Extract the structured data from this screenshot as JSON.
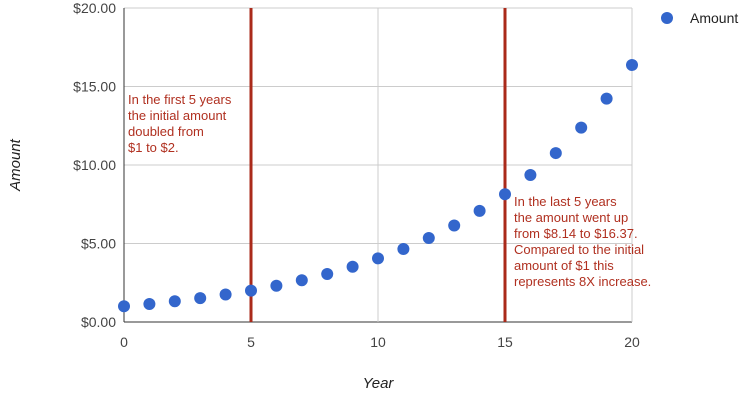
{
  "chart_data": {
    "type": "scatter",
    "title": "",
    "xlabel": "Year",
    "ylabel": "Amount",
    "xlim": [
      0,
      20
    ],
    "ylim": [
      0,
      20
    ],
    "x_ticks": [
      0,
      5,
      10,
      15,
      20
    ],
    "x_tick_labels": [
      "0",
      "5",
      "10",
      "15",
      "20"
    ],
    "y_ticks": [
      0,
      5,
      10,
      15,
      20
    ],
    "y_tick_labels": [
      "$0.00",
      "$5.00",
      "$10.00",
      "$15.00",
      "$20.00"
    ],
    "grid": true,
    "legend_position": "top-right",
    "series": [
      {
        "name": "Amount",
        "color": "#3366cc",
        "x": [
          0,
          1,
          2,
          3,
          4,
          5,
          6,
          7,
          8,
          9,
          10,
          11,
          12,
          13,
          14,
          15,
          16,
          17,
          18,
          19,
          20
        ],
        "y": [
          1.0,
          1.15,
          1.32,
          1.52,
          1.75,
          2.0,
          2.31,
          2.66,
          3.06,
          3.52,
          4.05,
          4.65,
          5.35,
          6.15,
          7.08,
          8.14,
          9.36,
          10.76,
          12.38,
          14.23,
          16.37
        ]
      }
    ],
    "reference_lines": [
      {
        "x": 5,
        "color": "#aa2a1a"
      },
      {
        "x": 15,
        "color": "#aa2a1a"
      }
    ],
    "annotations": [
      {
        "lines": [
          "In the first 5 years",
          "the initial amount",
          "doubled from",
          "$1 to $2."
        ]
      },
      {
        "lines": [
          "In the last 5 years",
          "the amount went up",
          "from $8.14 to $16.37.",
          "Compared to the initial",
          "amount of $1 this",
          "represents 8X increase."
        ]
      }
    ]
  }
}
